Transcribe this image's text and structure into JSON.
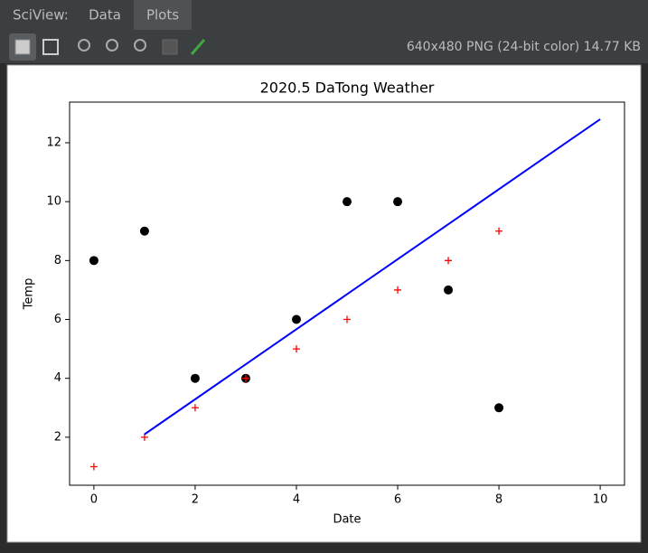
{
  "tabs": {
    "label": "SciView:",
    "items": [
      "Data",
      "Plots"
    ]
  },
  "image_info": "640x480 PNG (24-bit color) 14.77 KB",
  "chart_data": {
    "type": "scatter",
    "title": "2020.5 DaTong Weather",
    "x_label": "Date",
    "y_label": "Temp",
    "xlim": [
      -0.48,
      10.48
    ],
    "ylim": [
      0.37,
      13.38
    ],
    "xticks": [
      0,
      2,
      4,
      6,
      8,
      10
    ],
    "yticks": [
      2,
      4,
      6,
      8,
      10,
      12
    ],
    "series": [
      {
        "style": "dot",
        "color": "#000000",
        "x": [
          0,
          1,
          2,
          3,
          4,
          5,
          6,
          7,
          8
        ],
        "values": [
          8,
          9,
          4,
          4,
          6,
          10,
          10,
          7,
          3
        ]
      },
      {
        "style": "plus",
        "color": "#ff0000",
        "x": [
          0,
          1,
          2,
          3,
          4,
          5,
          6,
          7,
          8
        ],
        "values": [
          1,
          2,
          3,
          4,
          5,
          6,
          7,
          8,
          9
        ]
      },
      {
        "style": "line",
        "color": "#0000ff",
        "x": [
          1,
          10
        ],
        "values": [
          2.1,
          12.8
        ]
      }
    ]
  }
}
